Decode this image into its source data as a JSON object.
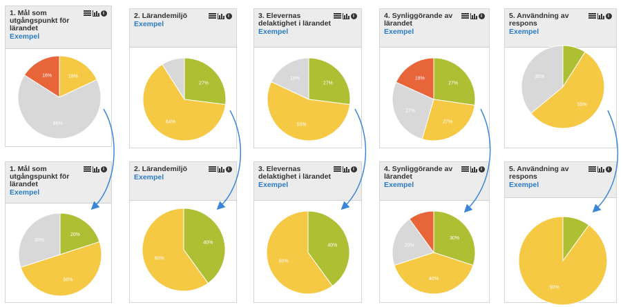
{
  "chart_data": [
    {
      "type": "pie",
      "title": "1. Mål som utgångspunkt för lärandet",
      "subtitle": "Exempel",
      "slices": [
        {
          "value": 18,
          "label": "18%",
          "color": "#f5c944"
        },
        {
          "value": 66,
          "label": "66%",
          "color": "#d8d8d8"
        },
        {
          "value": 16,
          "label": "16%",
          "color": "#e8653a"
        }
      ]
    },
    {
      "type": "pie",
      "title": "2. Lärandemiljö",
      "subtitle": "Exempel",
      "slices": [
        {
          "value": 27,
          "label": "27%",
          "color": "#afbf34"
        },
        {
          "value": 64,
          "label": "64%",
          "color": "#f5c944"
        },
        {
          "value": 9,
          "label": "",
          "color": "#d8d8d8"
        }
      ]
    },
    {
      "type": "pie",
      "title": "3. Elevernas delaktighet i lärandet",
      "subtitle": "Exempel",
      "slices": [
        {
          "value": 27,
          "label": "27%",
          "color": "#afbf34"
        },
        {
          "value": 55,
          "label": "55%",
          "color": "#f5c944"
        },
        {
          "value": 18,
          "label": "18%",
          "color": "#d8d8d8"
        }
      ]
    },
    {
      "type": "pie",
      "title": "4. Synliggörande av lärandet",
      "subtitle": "Exempel",
      "slices": [
        {
          "value": 27,
          "label": "27%",
          "color": "#afbf34"
        },
        {
          "value": 27,
          "label": "27%",
          "color": "#f5c944"
        },
        {
          "value": 27,
          "label": "27%",
          "color": "#d8d8d8"
        },
        {
          "value": 18,
          "label": "18%",
          "color": "#e8653a"
        }
      ]
    },
    {
      "type": "pie",
      "title": "5. Användning av respons",
      "subtitle": "Exempel",
      "slices": [
        {
          "value": 9,
          "label": "",
          "color": "#afbf34"
        },
        {
          "value": 55,
          "label": "55%",
          "color": "#f5c944"
        },
        {
          "value": 36,
          "label": "36%",
          "color": "#d8d8d8"
        }
      ]
    },
    {
      "type": "pie",
      "title": "1. Mål som utgångspunkt för lärandet",
      "subtitle": "Exempel",
      "slices": [
        {
          "value": 20,
          "label": "20%",
          "color": "#afbf34"
        },
        {
          "value": 50,
          "label": "50%",
          "color": "#f5c944"
        },
        {
          "value": 30,
          "label": "30%",
          "color": "#d8d8d8"
        }
      ]
    },
    {
      "type": "pie",
      "title": "2. Lärandemiljö",
      "subtitle": "Exempel",
      "slices": [
        {
          "value": 40,
          "label": "40%",
          "color": "#afbf34"
        },
        {
          "value": 60,
          "label": "60%",
          "color": "#f5c944"
        }
      ]
    },
    {
      "type": "pie",
      "title": "3. Elevernas delaktighet i lärandet",
      "subtitle": "Exempel",
      "slices": [
        {
          "value": 40,
          "label": "40%",
          "color": "#afbf34"
        },
        {
          "value": 60,
          "label": "60%",
          "color": "#f5c944"
        }
      ]
    },
    {
      "type": "pie",
      "title": "4. Synliggörande av lärandet",
      "subtitle": "Exempel",
      "slices": [
        {
          "value": 30,
          "label": "30%",
          "color": "#afbf34"
        },
        {
          "value": 40,
          "label": "40%",
          "color": "#f5c944"
        },
        {
          "value": 20,
          "label": "20%",
          "color": "#d8d8d8"
        },
        {
          "value": 10,
          "label": "",
          "color": "#e8653a"
        }
      ]
    },
    {
      "type": "pie",
      "title": "5. Användning av respons",
      "subtitle": "Exempel",
      "slices": [
        {
          "value": 10,
          "label": "",
          "color": "#afbf34"
        },
        {
          "value": 90,
          "label": "90%",
          "color": "#f5c944"
        }
      ]
    }
  ],
  "colors": {
    "link": "#2b7bc4",
    "arrow": "#3b86d8",
    "header_bg": "#ececec"
  },
  "icons": [
    "list-icon",
    "bar-chart-icon",
    "info-icon"
  ],
  "info_glyph": "i"
}
